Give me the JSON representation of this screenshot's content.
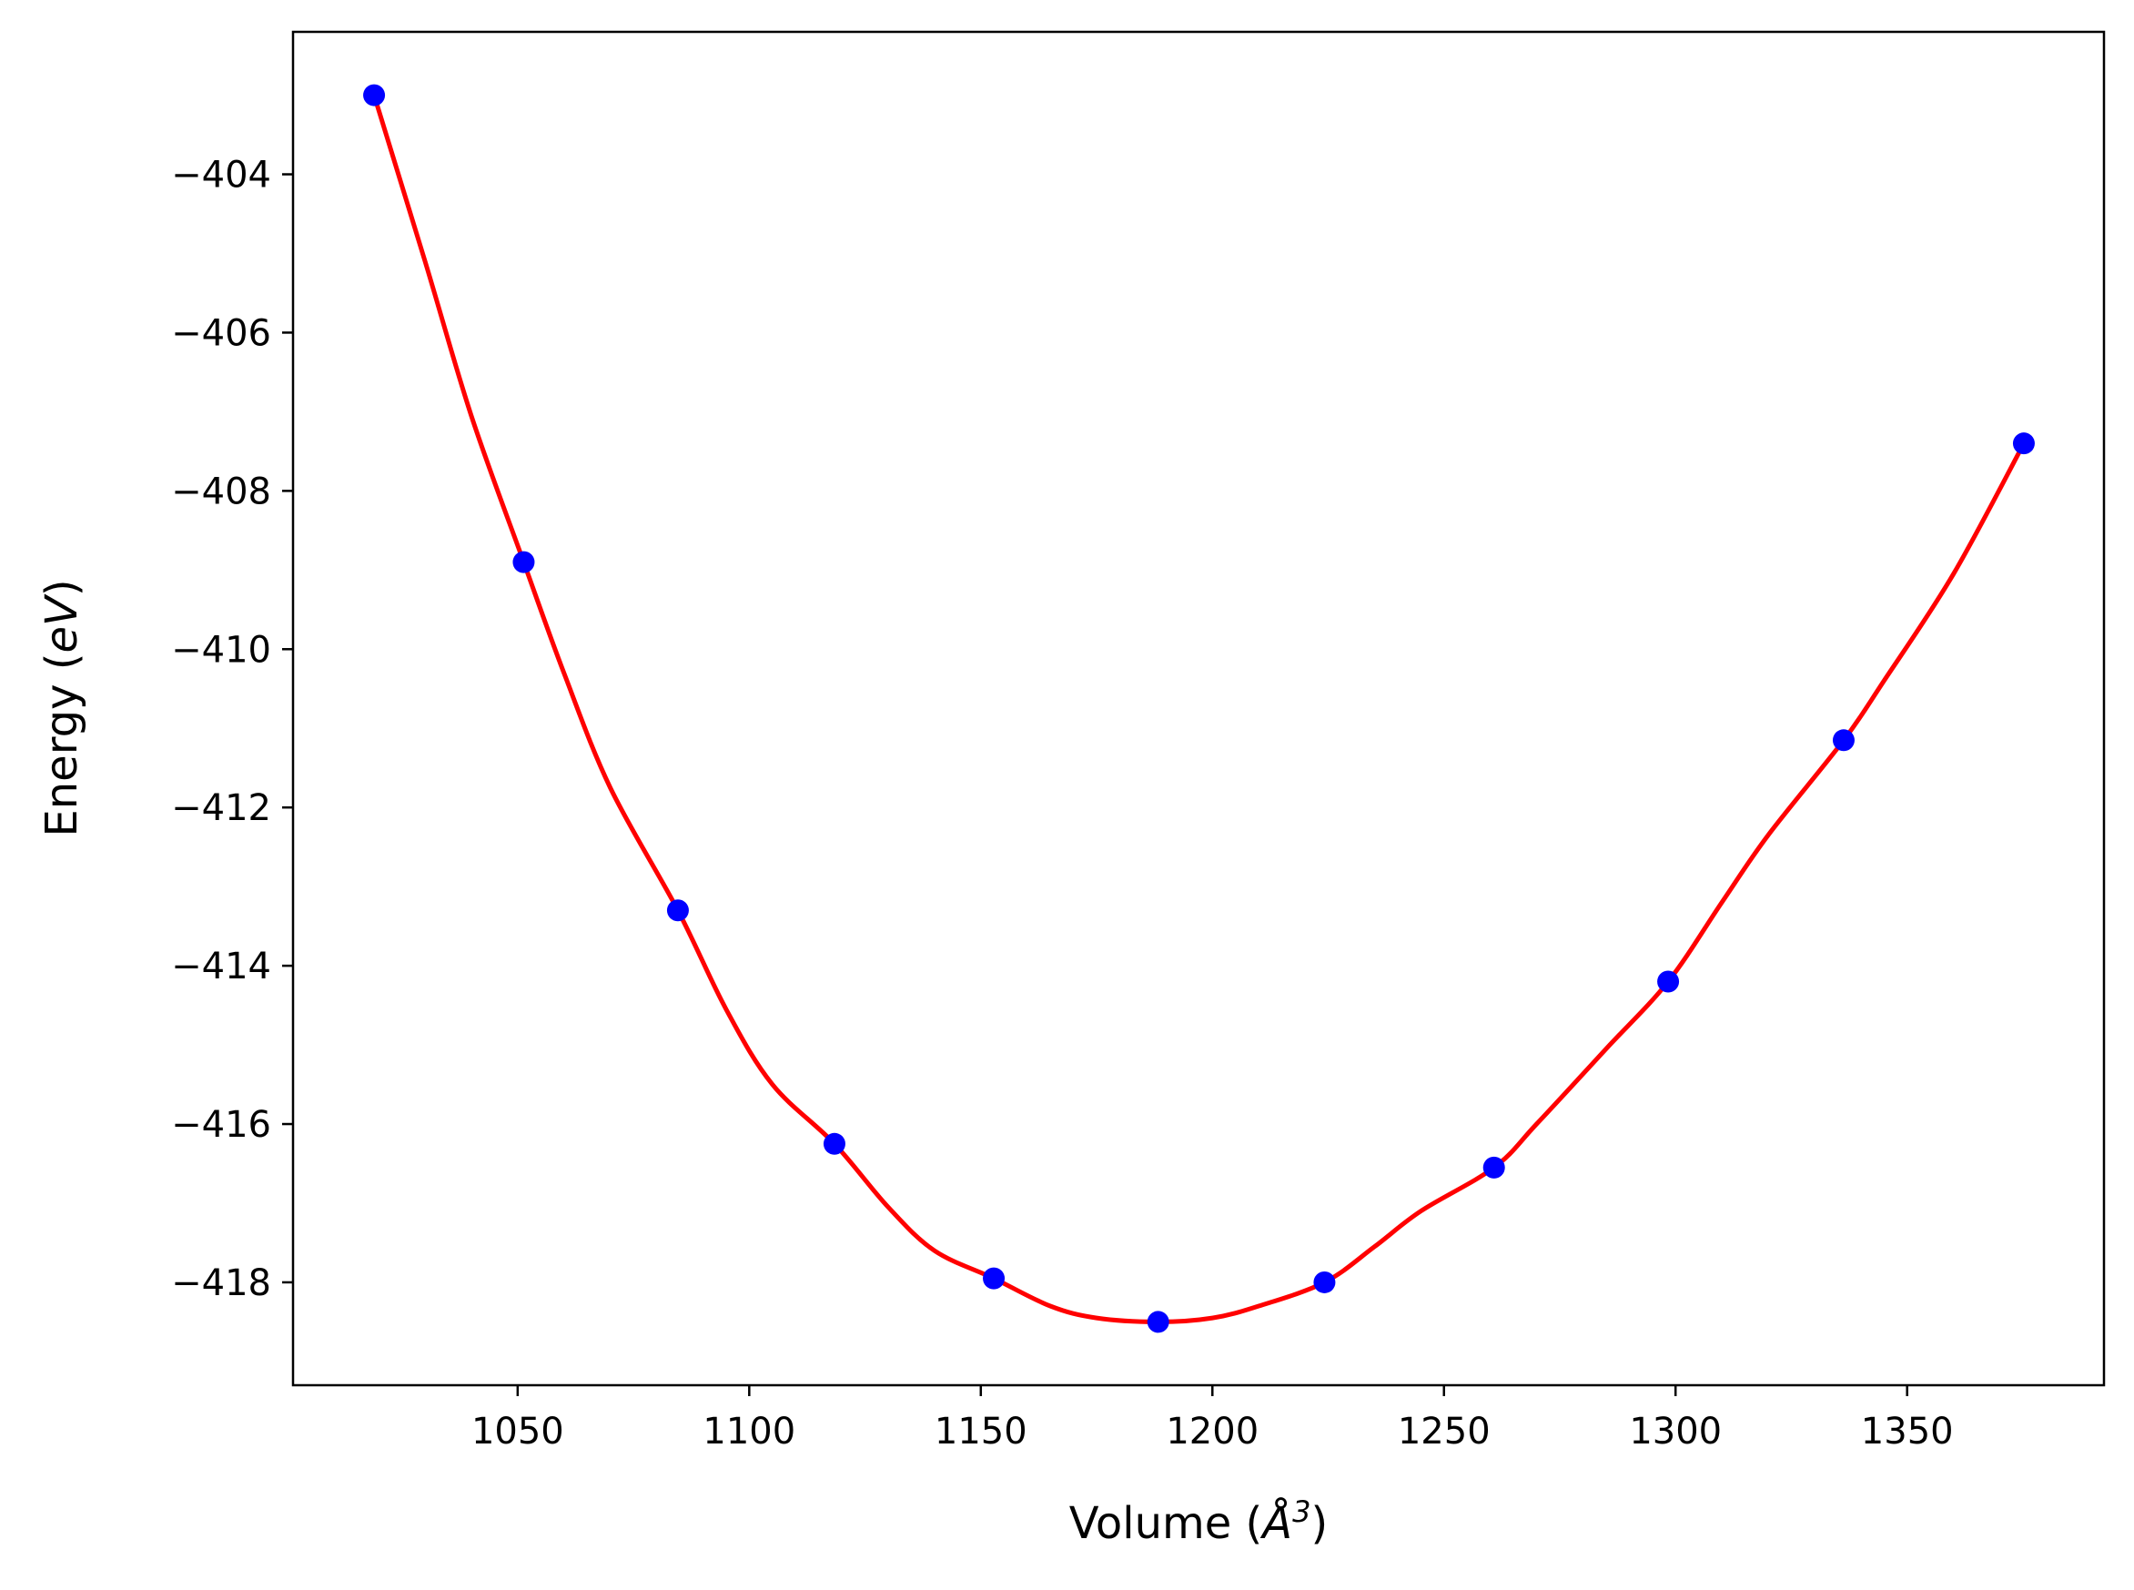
{
  "chart_data": {
    "type": "scatter",
    "title": "",
    "xlabel": "Volume (",
    "xlabel_unit": "Å",
    "xlabel_sup": "3",
    "xlabel_close": ")",
    "ylabel": "Energy (",
    "ylabel_unit": "eV",
    "ylabel_close": ")",
    "xlim": [
      1001.5,
      1392.5
    ],
    "ylim": [
      -419.3,
      -402.2
    ],
    "xticks": [
      1050,
      1100,
      1150,
      1200,
      1250,
      1300,
      1350
    ],
    "xtick_labels": [
      "1050",
      "1100",
      "1150",
      "1200",
      "1250",
      "1300",
      "1350"
    ],
    "yticks": [
      -404,
      -406,
      -408,
      -410,
      -412,
      -414,
      -416,
      -418
    ],
    "ytick_labels": [
      "−404",
      "−406",
      "−408",
      "−410",
      "−412",
      "−414",
      "−416",
      "−418"
    ],
    "grid": false,
    "series": [
      {
        "kind": "points",
        "color": "#0000ff",
        "x": [
          1019.0,
          1051.3,
          1084.6,
          1118.4,
          1152.8,
          1188.3,
          1224.2,
          1260.8,
          1298.4,
          1336.3,
          1375.2
        ],
        "y": [
          -403.0,
          -408.9,
          -413.3,
          -416.25,
          -417.95,
          -418.5,
          -418.0,
          -416.55,
          -414.2,
          -411.15,
          -407.4
        ]
      },
      {
        "kind": "fit-curve",
        "color": "#ff0000",
        "x": [
          1019.0,
          1030,
          1040,
          1051.3,
          1060,
          1070,
          1084.6,
          1095,
          1105,
          1118.4,
          1130,
          1140,
          1152.8,
          1165,
          1175,
          1188.3,
          1200,
          1210,
          1224.2,
          1235,
          1245,
          1260.8,
          1270,
          1285,
          1298.4,
          1310,
          1320,
          1336.3,
          1345,
          1360,
          1375.2
        ],
        "y": [
          -403.0,
          -405.1,
          -407.05,
          -408.9,
          -410.3,
          -411.75,
          -413.3,
          -414.55,
          -415.5,
          -416.25,
          -417.05,
          -417.6,
          -417.95,
          -418.3,
          -418.45,
          -418.5,
          -418.45,
          -418.3,
          -418.0,
          -417.55,
          -417.1,
          -416.55,
          -416.0,
          -415.05,
          -414.2,
          -413.2,
          -412.35,
          -411.15,
          -410.4,
          -409.05,
          -407.4
        ]
      }
    ]
  }
}
